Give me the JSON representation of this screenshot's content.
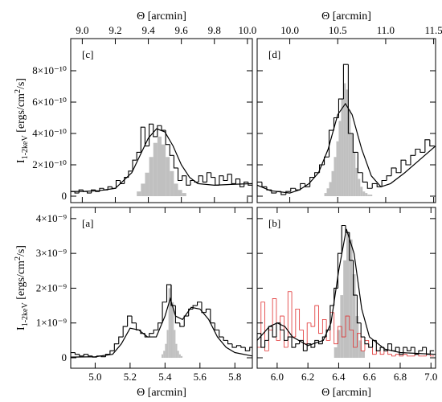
{
  "chart_data": [
    {
      "type": "histogram",
      "label": "[c]",
      "xlabel": "Θ [arcmin]",
      "xaxis": "top",
      "ylabel": {
        "base": "I",
        "sub": "1-2keV",
        "pre": " [ergs/cm",
        "sup": "2",
        "post": "/s]"
      },
      "show_yticklabels": true,
      "xlim": [
        8.93,
        10.03
      ],
      "xticks": [
        {
          "value": 9,
          "label": "9.0"
        },
        9.2,
        9.4,
        9.6,
        9.8,
        {
          "value": 10,
          "label": "10.0"
        }
      ],
      "ylim": [
        -4.1e-11,
        1.005e-09
      ],
      "yticks": [
        0,
        {
          "value": 2e-10,
          "label": "2×10⁻¹⁰"
        },
        {
          "value": 4e-10,
          "label": "4×10⁻¹⁰"
        },
        {
          "value": 6e-10,
          "label": "6×10⁻¹⁰"
        },
        {
          "value": 8e-10,
          "label": "8×10⁻¹⁰"
        }
      ],
      "series": [
        {
          "kind": "fill",
          "color": "#c0c0c0",
          "bins": [
            9.33,
            9.355,
            9.38,
            9.405,
            9.43,
            9.455,
            9.48,
            9.505,
            9.53,
            9.555,
            9.58,
            9.605,
            9.63
          ],
          "values": [
            3e-11,
            8e-11,
            1.5e-10,
            2.5e-10,
            3.4e-10,
            3.8e-10,
            3.3e-10,
            2.5e-10,
            1.6e-10,
            8e-11,
            4e-11,
            2e-11
          ]
        },
        {
          "kind": "step",
          "color": "#000000",
          "bins": [
            8.93,
            8.955,
            8.98,
            9.005,
            9.03,
            9.055,
            9.08,
            9.105,
            9.13,
            9.155,
            9.18,
            9.205,
            9.23,
            9.255,
            9.28,
            9.305,
            9.33,
            9.355,
            9.38,
            9.405,
            9.43,
            9.455,
            9.48,
            9.505,
            9.53,
            9.555,
            9.58,
            9.605,
            9.63,
            9.655,
            9.68,
            9.705,
            9.73,
            9.755,
            9.78,
            9.805,
            9.83,
            9.855,
            9.88,
            9.905,
            9.93,
            9.955,
            9.98,
            10.005,
            10.03
          ],
          "values": [
            3e-11,
            2e-11,
            4e-11,
            3e-11,
            2e-11,
            4e-11,
            3e-11,
            5e-11,
            4e-11,
            6e-11,
            5e-11,
            1e-10,
            8e-11,
            1.2e-10,
            1.6e-10,
            2.3e-10,
            2.8e-10,
            4.4e-10,
            3.2e-10,
            4.6e-10,
            3.8e-10,
            4.5e-10,
            4.2e-10,
            3.3e-10,
            2.6e-10,
            1.8e-10,
            1e-10,
            1.3e-10,
            7e-11,
            1e-10,
            9e-11,
            1.3e-10,
            9e-11,
            1.5e-10,
            1.2e-10,
            7e-11,
            1.3e-10,
            1e-10,
            1.4e-10,
            8e-11,
            1.1e-10,
            6e-11,
            9e-11,
            7e-11
          ]
        },
        {
          "kind": "line",
          "color": "#000000",
          "x": [
            8.93,
            9.0,
            9.1,
            9.2,
            9.3,
            9.35,
            9.4,
            9.45,
            9.5,
            9.55,
            9.6,
            9.65,
            9.7,
            9.8,
            9.9,
            10.03
          ],
          "values": [
            3e-11,
            3e-11,
            3.5e-11,
            5e-11,
            1.5e-10,
            2.6e-10,
            3.7e-10,
            4.3e-10,
            4.1e-10,
            3.2e-10,
            2e-10,
            1.2e-10,
            8e-11,
            7e-11,
            7.5e-11,
            8e-11
          ]
        }
      ]
    },
    {
      "type": "histogram",
      "label": "[d]",
      "xlabel": "Θ [arcmin]",
      "xaxis": "top",
      "show_yticklabels": false,
      "xlim": [
        9.66,
        11.52
      ],
      "xticks": [
        {
          "value": 10,
          "label": "10.0"
        },
        10.5,
        {
          "value": 11,
          "label": "11.0"
        },
        11.5
      ],
      "ylim": [
        -4.1e-11,
        1.005e-09
      ],
      "yticks": [
        0,
        2e-10,
        4e-10,
        6e-10,
        8e-10
      ],
      "series": [
        {
          "kind": "fill",
          "color": "#c0c0c0",
          "bins": [
            10.36,
            10.385,
            10.41,
            10.435,
            10.46,
            10.485,
            10.51,
            10.535,
            10.56,
            10.585,
            10.61,
            10.635,
            10.66,
            10.685,
            10.71,
            10.735,
            10.76,
            10.785,
            10.81,
            10.835,
            10.86
          ],
          "values": [
            2e-11,
            5e-11,
            9e-11,
            1.6e-10,
            2.5e-10,
            3.5e-10,
            4.8e-10,
            6.2e-10,
            7.2e-10,
            6.8e-10,
            5.5e-10,
            4e-10,
            2.8e-10,
            1.8e-10,
            1.1e-10,
            6e-11,
            3e-11,
            2e-11,
            1e-11,
            1e-11
          ]
        },
        {
          "kind": "step",
          "color": "#000000",
          "bins": [
            9.66,
            9.71,
            9.76,
            9.81,
            9.86,
            9.91,
            9.96,
            10.01,
            10.06,
            10.11,
            10.16,
            10.21,
            10.26,
            10.31,
            10.36,
            10.41,
            10.46,
            10.51,
            10.56,
            10.61,
            10.66,
            10.71,
            10.76,
            10.81,
            10.86,
            10.91,
            10.96,
            11.01,
            11.06,
            11.11,
            11.16,
            11.21,
            11.26,
            11.31,
            11.36,
            11.41,
            11.46,
            11.51
          ],
          "values": [
            9e-11,
            6e-11,
            4e-11,
            2e-11,
            3e-11,
            1e-11,
            3e-11,
            5e-11,
            4e-11,
            8e-11,
            6e-11,
            1.2e-10,
            1.5e-10,
            2e-10,
            2.5e-10,
            4.2e-10,
            5e-10,
            6.2e-10,
            8.4e-10,
            4e-10,
            2.8e-10,
            1.5e-10,
            9e-11,
            5e-11,
            8e-11,
            6e-11,
            1e-10,
            1.3e-10,
            1.8e-10,
            1.5e-10,
            2.3e-10,
            2e-10,
            2.6e-10,
            3e-10,
            2.8e-10,
            3.6e-10,
            3.2e-10
          ]
        },
        {
          "kind": "line",
          "color": "#000000",
          "x": [
            9.66,
            9.8,
            10.0,
            10.1,
            10.2,
            10.3,
            10.4,
            10.5,
            10.58,
            10.65,
            10.75,
            10.85,
            10.95,
            11.05,
            11.2,
            11.35,
            11.52
          ],
          "values": [
            7e-11,
            3.5e-11,
            2e-11,
            4e-11,
            8e-11,
            1.5e-10,
            3e-10,
            5.2e-10,
            5.9e-10,
            5.2e-10,
            3e-10,
            1.3e-10,
            6e-11,
            8e-11,
            1.5e-10,
            2.3e-10,
            3.2e-10
          ]
        }
      ]
    },
    {
      "type": "histogram",
      "label": "[a]",
      "xlabel": "Θ [arcmin]",
      "xaxis": "bottom",
      "ylabel": {
        "base": "I",
        "sub": "1-2keV",
        "pre": " [ergs/cm",
        "sup": "2",
        "post": "/s]"
      },
      "show_yticklabels": true,
      "xlim": [
        4.86,
        5.9
      ],
      "xticks": [
        {
          "value": 5,
          "label": "5.0"
        },
        5.2,
        5.4,
        5.6,
        5.8
      ],
      "ylim": [
        -3e-10,
        4.32e-09
      ],
      "yticks": [
        0,
        {
          "value": 1e-09,
          "label": "1×10⁻⁹"
        },
        {
          "value": 2e-09,
          "label": "2×10⁻⁹"
        },
        {
          "value": 3e-09,
          "label": "3×10⁻⁹"
        },
        {
          "value": 4e-09,
          "label": "4×10⁻⁹"
        }
      ],
      "series": [
        {
          "kind": "fill",
          "color": "#c0c0c0",
          "bins": [
            5.38,
            5.39,
            5.4,
            5.41,
            5.42,
            5.43,
            5.44,
            5.45,
            5.46,
            5.47,
            5.48,
            5.49,
            5.5
          ],
          "values": [
            1e-10,
            2e-10,
            4e-10,
            8e-10,
            2e-09,
            2.1e-09,
            1.6e-09,
            8e-10,
            4e-10,
            2e-10,
            1e-10,
            5e-11
          ]
        },
        {
          "kind": "step",
          "color": "#000000",
          "bins": [
            4.86,
            4.885,
            4.91,
            4.935,
            4.96,
            4.985,
            5.01,
            5.035,
            5.06,
            5.085,
            5.11,
            5.135,
            5.16,
            5.185,
            5.21,
            5.235,
            5.26,
            5.285,
            5.31,
            5.335,
            5.36,
            5.385,
            5.41,
            5.435,
            5.46,
            5.485,
            5.51,
            5.535,
            5.56,
            5.585,
            5.61,
            5.635,
            5.66,
            5.685,
            5.71,
            5.735,
            5.76,
            5.785,
            5.81,
            5.835,
            5.86,
            5.885,
            5.91
          ],
          "values": [
            1.5e-10,
            1e-10,
            5e-11,
            1e-10,
            5e-11,
            2e-11,
            5e-11,
            3e-11,
            1e-10,
            2e-10,
            4e-10,
            6e-10,
            9e-10,
            1.2e-09,
            1e-09,
            8e-10,
            7e-10,
            6e-10,
            7e-10,
            8e-10,
            1e-09,
            1.6e-09,
            2.1e-09,
            1.5e-09,
            1e-09,
            9e-10,
            1.2e-09,
            1.4e-09,
            1.5e-09,
            1.6e-09,
            1.3e-09,
            1.4e-09,
            1e-09,
            8e-10,
            6e-10,
            5e-10,
            4e-10,
            3e-10,
            3.5e-10,
            3e-10,
            2e-10,
            3e-10
          ]
        },
        {
          "kind": "line",
          "color": "#000000",
          "x": [
            4.86,
            5.0,
            5.1,
            5.15,
            5.2,
            5.25,
            5.3,
            5.35,
            5.4,
            5.43,
            5.46,
            5.5,
            5.55,
            5.6,
            5.65,
            5.7,
            5.75,
            5.8,
            5.9
          ],
          "values": [
            2e-11,
            3e-11,
            1e-10,
            4e-10,
            8.5e-10,
            8e-10,
            6e-10,
            6e-10,
            1.2e-09,
            1.7e-09,
            1.2e-09,
            1.1e-09,
            1.45e-09,
            1.4e-09,
            1.1e-09,
            6e-10,
            3e-10,
            1.5e-10,
            5e-11
          ]
        }
      ]
    },
    {
      "type": "histogram",
      "label": "[b]",
      "xlabel": "Θ [arcmin]",
      "xaxis": "bottom",
      "show_yticklabels": false,
      "xlim": [
        5.87,
        7.03
      ],
      "xticks": [
        {
          "value": 6,
          "label": "6.0"
        },
        6.2,
        6.4,
        6.6,
        6.8,
        {
          "value": 7,
          "label": "7.0"
        }
      ],
      "ylim": [
        -3e-10,
        4.32e-09
      ],
      "yticks": [
        0,
        1e-09,
        2e-09,
        3e-09,
        4e-09
      ],
      "series": [
        {
          "kind": "fill",
          "color": "#c0c0c0",
          "bins": [
            6.37,
            6.39,
            6.41,
            6.43,
            6.45,
            6.47,
            6.49,
            6.51,
            6.53,
            6.55,
            6.57
          ],
          "values": [
            3e-10,
            8e-10,
            1.8e-09,
            2.8e-09,
            3.6e-09,
            3.4e-09,
            2.4e-09,
            1.2e-09,
            5e-10,
            2e-10
          ]
        },
        {
          "kind": "step",
          "color": "#e03030",
          "bins": [
            5.87,
            5.895,
            5.92,
            5.945,
            5.97,
            5.995,
            6.02,
            6.045,
            6.07,
            6.095,
            6.12,
            6.145,
            6.17,
            6.195,
            6.22,
            6.245,
            6.27,
            6.295,
            6.32,
            6.345,
            6.37,
            6.395,
            6.42,
            6.445,
            6.47,
            6.495,
            6.52,
            6.545,
            6.57,
            6.595,
            6.62,
            6.645,
            6.67,
            6.695,
            6.72,
            6.745,
            6.77,
            6.795,
            6.82,
            6.845,
            6.87,
            6.895,
            6.92,
            6.945,
            6.97,
            6.995,
            7.02
          ],
          "values": [
            3e-10,
            1.6e-09,
            2e-10,
            8e-10,
            1.7e-09,
            5e-10,
            1.2e-09,
            3e-10,
            1.9e-09,
            6e-10,
            1.4e-09,
            8e-10,
            4e-10,
            1e-09,
            9e-10,
            1.5e-09,
            7e-10,
            1.1e-09,
            5e-10,
            1.3e-09,
            4e-10,
            9e-10,
            6e-10,
            1.2e-09,
            8e-10,
            3e-10,
            7e-10,
            2e-10,
            5e-10,
            3e-10,
            1e-10,
            2e-10,
            1e-10,
            2e-10,
            1e-10,
            5e-11,
            1e-10,
            5e-11,
            1e-10,
            5e-11,
            5e-11,
            1e-10,
            5e-11,
            5e-11,
            1e-10,
            5e-11
          ]
        },
        {
          "kind": "step",
          "color": "#000000",
          "bins": [
            5.87,
            5.895,
            5.92,
            5.945,
            5.97,
            5.995,
            6.02,
            6.045,
            6.07,
            6.095,
            6.12,
            6.145,
            6.17,
            6.195,
            6.22,
            6.245,
            6.27,
            6.295,
            6.32,
            6.345,
            6.37,
            6.395,
            6.42,
            6.445,
            6.47,
            6.495,
            6.52,
            6.545,
            6.57,
            6.595,
            6.62,
            6.645,
            6.67,
            6.695,
            6.72,
            6.745,
            6.77,
            6.795,
            6.82,
            6.845,
            6.87,
            6.895,
            6.92,
            6.945,
            6.97,
            6.995,
            7.02
          ],
          "values": [
            7e-10,
            3e-10,
            5e-10,
            9e-10,
            6e-10,
            1e-09,
            8e-10,
            5e-10,
            6e-10,
            3e-10,
            4e-10,
            5e-10,
            2e-10,
            4e-10,
            3e-10,
            5e-10,
            4e-10,
            6e-10,
            8e-10,
            1.5e-09,
            2e-09,
            3e-09,
            3.8e-09,
            3.6e-09,
            2.8e-09,
            1.8e-09,
            1e-09,
            6e-10,
            4e-10,
            3e-10,
            5e-10,
            2e-10,
            3e-10,
            2e-10,
            4e-10,
            2e-10,
            3e-10,
            1e-10,
            3e-10,
            2e-10,
            3e-10,
            1e-10,
            2e-10,
            3e-10,
            1e-10,
            2e-10
          ]
        },
        {
          "kind": "line",
          "color": "#000000",
          "x": [
            5.87,
            5.95,
            6.0,
            6.05,
            6.1,
            6.2,
            6.3,
            6.35,
            6.4,
            6.45,
            6.5,
            6.55,
            6.6,
            6.7,
            6.8,
            7.03
          ],
          "values": [
            5e-10,
            9e-10,
            1e-09,
            9e-10,
            6e-10,
            3.5e-10,
            5e-10,
            1e-09,
            2.5e-09,
            3.7e-09,
            3e-09,
            1.4e-09,
            6e-10,
            2.5e-10,
            1.5e-10,
            1e-10
          ]
        }
      ]
    }
  ]
}
